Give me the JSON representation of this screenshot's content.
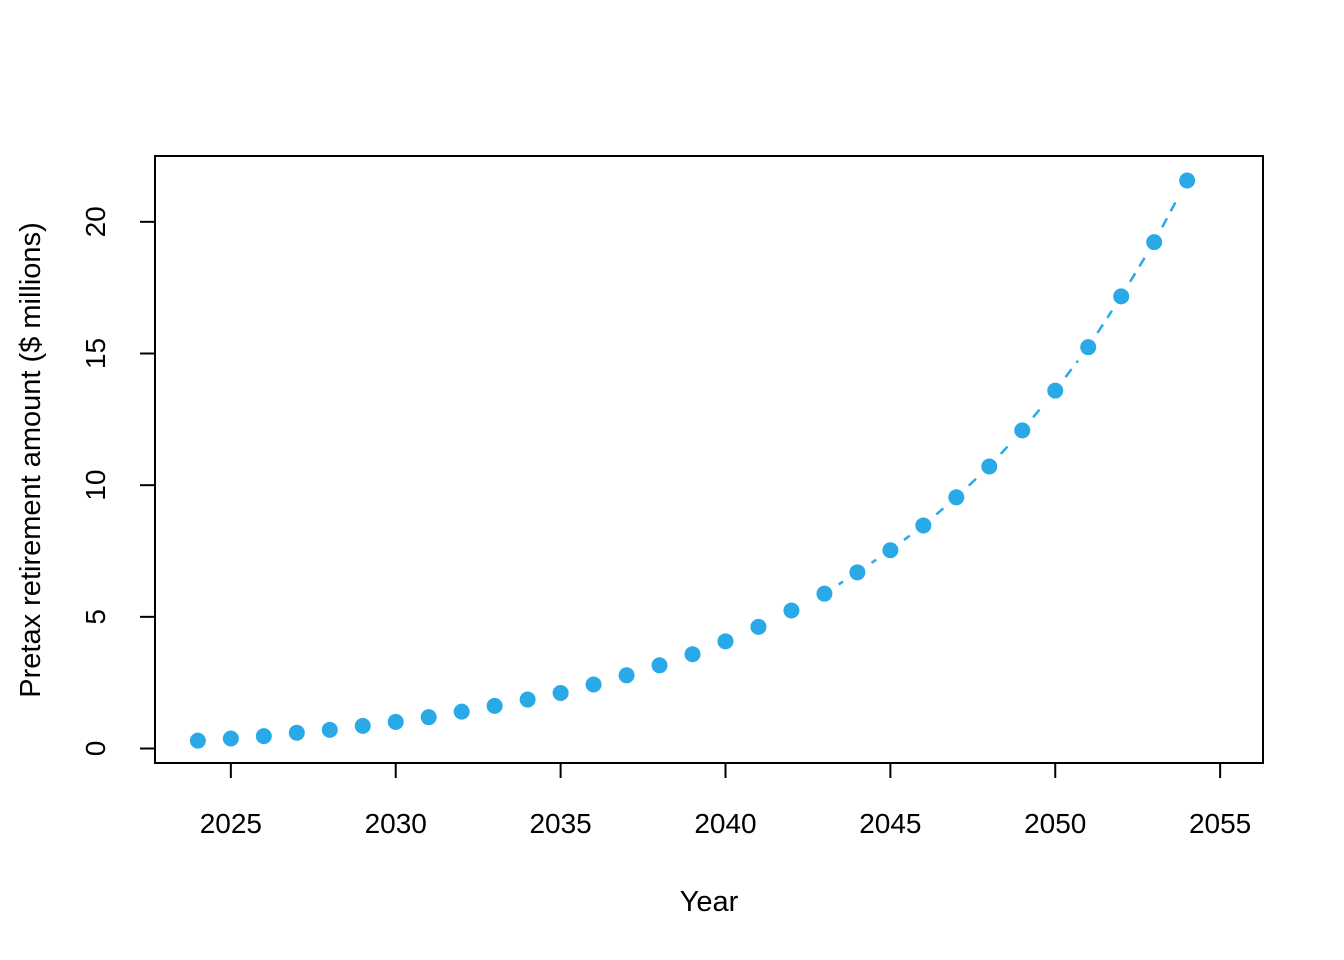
{
  "chart_data": {
    "type": "scatter",
    "title": "",
    "xlabel": "Year",
    "ylabel": "Pretax retirement amount ($ millions)",
    "x": [
      2024,
      2025,
      2026,
      2027,
      2028,
      2029,
      2030,
      2031,
      2032,
      2033,
      2034,
      2035,
      2036,
      2037,
      2038,
      2039,
      2040,
      2041,
      2042,
      2043,
      2044,
      2045,
      2046,
      2047,
      2048,
      2049,
      2050,
      2051,
      2052,
      2053,
      2054
    ],
    "y": [
      0.3,
      0.38,
      0.47,
      0.6,
      0.71,
      0.86,
      1.01,
      1.19,
      1.4,
      1.62,
      1.86,
      2.11,
      2.43,
      2.78,
      3.16,
      3.58,
      4.07,
      4.62,
      5.24,
      5.88,
      6.69,
      7.53,
      8.47,
      9.54,
      10.71,
      12.08,
      13.59,
      15.24,
      17.17,
      19.23,
      21.57
    ],
    "x_ticks": [
      2025,
      2030,
      2035,
      2040,
      2045,
      2050,
      2055
    ],
    "y_ticks": [
      0,
      5,
      10,
      15,
      20
    ],
    "xlim": [
      2022.7,
      2056.3
    ],
    "ylim": [
      -0.55,
      22.5
    ],
    "grid": false,
    "legend": null,
    "marker": "filled-circle",
    "line_style": "dashed",
    "point_color": "#29a9e8",
    "axis_color": "#000000",
    "background_color": "#ffffff"
  }
}
